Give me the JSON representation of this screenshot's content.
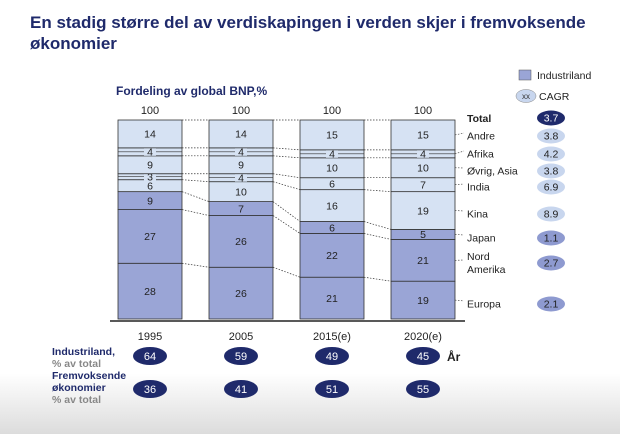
{
  "title": "En stadig større del av verdiskapingen i verden skjer i fremvoksende økonomier",
  "chart_data": {
    "type": "bar",
    "stacked": true,
    "subtitle": "Fordeling av global BNP,%",
    "categories": [
      "1995",
      "2005",
      "2015(e)",
      "2020(e)"
    ],
    "totals": [
      "100",
      "100",
      "100",
      "100"
    ],
    "series": [
      {
        "name": "Europa",
        "industrialized": true,
        "values": [
          28,
          26,
          21,
          19
        ],
        "cagr": "2.1"
      },
      {
        "name": "Nord Amerika",
        "industrialized": true,
        "values": [
          27,
          26,
          22,
          21
        ],
        "cagr": "2.7"
      },
      {
        "name": "Japan",
        "industrialized": true,
        "values": [
          9,
          7,
          6,
          5
        ],
        "cagr": "1.1"
      },
      {
        "name": "Kina",
        "industrialized": false,
        "values": [
          6,
          10,
          16,
          19
        ],
        "cagr": "8.9"
      },
      {
        "name": "India",
        "industrialized": false,
        "values": [
          3,
          4,
          6,
          7
        ],
        "cagr": "6.9"
      },
      {
        "name": "Øvrig, Asia",
        "industrialized": false,
        "values": [
          9,
          9,
          10,
          10
        ],
        "cagr": "3.8"
      },
      {
        "name": "Afrika",
        "industrialized": false,
        "values": [
          4,
          4,
          4,
          4
        ],
        "cagr": "4.2"
      },
      {
        "name": "Andre",
        "industrialized": false,
        "values": [
          14,
          14,
          15,
          15
        ],
        "cagr": "3.8"
      }
    ],
    "total_label": "Total",
    "total_cagr": "3.7",
    "legend": {
      "industrialized": "Industriland",
      "cagr_symbol": "xx",
      "cagr": "CAGR"
    },
    "industrialized_share": [
      64,
      59,
      49,
      45
    ],
    "emerging_share": [
      36,
      41,
      51,
      55
    ],
    "ylim": [
      0,
      100
    ]
  },
  "rows": {
    "industrial_label": "Industriland,",
    "industrial_sub": "% av total",
    "emerging_label_1": "Fremvoksende",
    "emerging_label_2": "økonomier",
    "emerging_sub": "% av total"
  },
  "x_axis_label": "År",
  "colors": {
    "title": "#1f2a6b",
    "industrial_fill": "#9aa5d6",
    "emerging_fill": "#d6e2f3",
    "dark_oval": "#1f2a6b",
    "light_oval": "#c8d6ee",
    "mid_oval": "#8e9ad0"
  }
}
